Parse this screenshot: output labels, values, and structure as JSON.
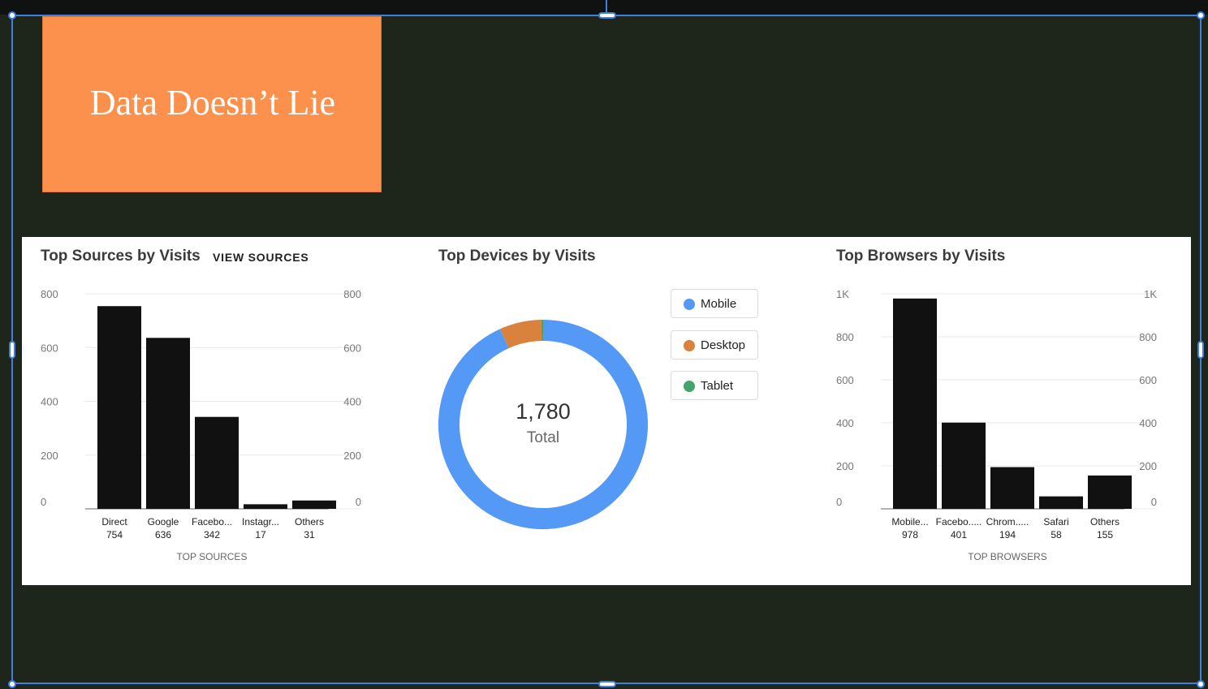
{
  "hero": {
    "title": "Data Doesn’t Lie",
    "color": "#fb914d"
  },
  "sources": {
    "title": "Top Sources by Visits",
    "view_link": "VIEW SOURCES",
    "chart_data": {
      "type": "bar",
      "categories": [
        "Direct",
        "Google",
        "Facebo...",
        "Instagr...",
        "Others"
      ],
      "values": [
        754,
        636,
        342,
        17,
        31
      ],
      "value_labels": [
        "754",
        "636",
        "342",
        "17",
        "31"
      ],
      "xlabel": "TOP SOURCES",
      "ylim": [
        0,
        800
      ],
      "yticks": [
        "0",
        "200",
        "400",
        "600",
        "800"
      ],
      "grid": true
    }
  },
  "devices": {
    "title": "Top Devices by Visits",
    "total": "1,780",
    "total_label": "Total",
    "legend": [
      {
        "label": "Mobile",
        "color": "#5599f7"
      },
      {
        "label": "Desktop",
        "color": "#d9823e"
      },
      {
        "label": "Tablet",
        "color": "#45a36e"
      }
    ],
    "chart_data": {
      "type": "pie",
      "categories": [
        "Mobile",
        "Desktop",
        "Tablet"
      ],
      "values": [
        1660,
        115,
        5
      ],
      "colors": [
        "#5599f7",
        "#d9823e",
        "#45a36e"
      ]
    }
  },
  "browsers": {
    "title": "Top Browsers by Visits",
    "chart_data": {
      "type": "bar",
      "categories": [
        "Mobile...",
        "Facebo.....",
        "Chrom.....",
        "Safari",
        "Others"
      ],
      "values": [
        978,
        401,
        194,
        58,
        155
      ],
      "value_labels": [
        "978",
        "401",
        "194",
        "58",
        "155"
      ],
      "xlabel": "TOP BROWSERS",
      "ylim": [
        0,
        1000
      ],
      "yticks": [
        "0",
        "200",
        "400",
        "600",
        "800",
        "1K"
      ],
      "grid": true
    }
  },
  "colors": {
    "bar": "#111111",
    "canvas": "#1e261b",
    "selection": "#3f7fe0"
  }
}
